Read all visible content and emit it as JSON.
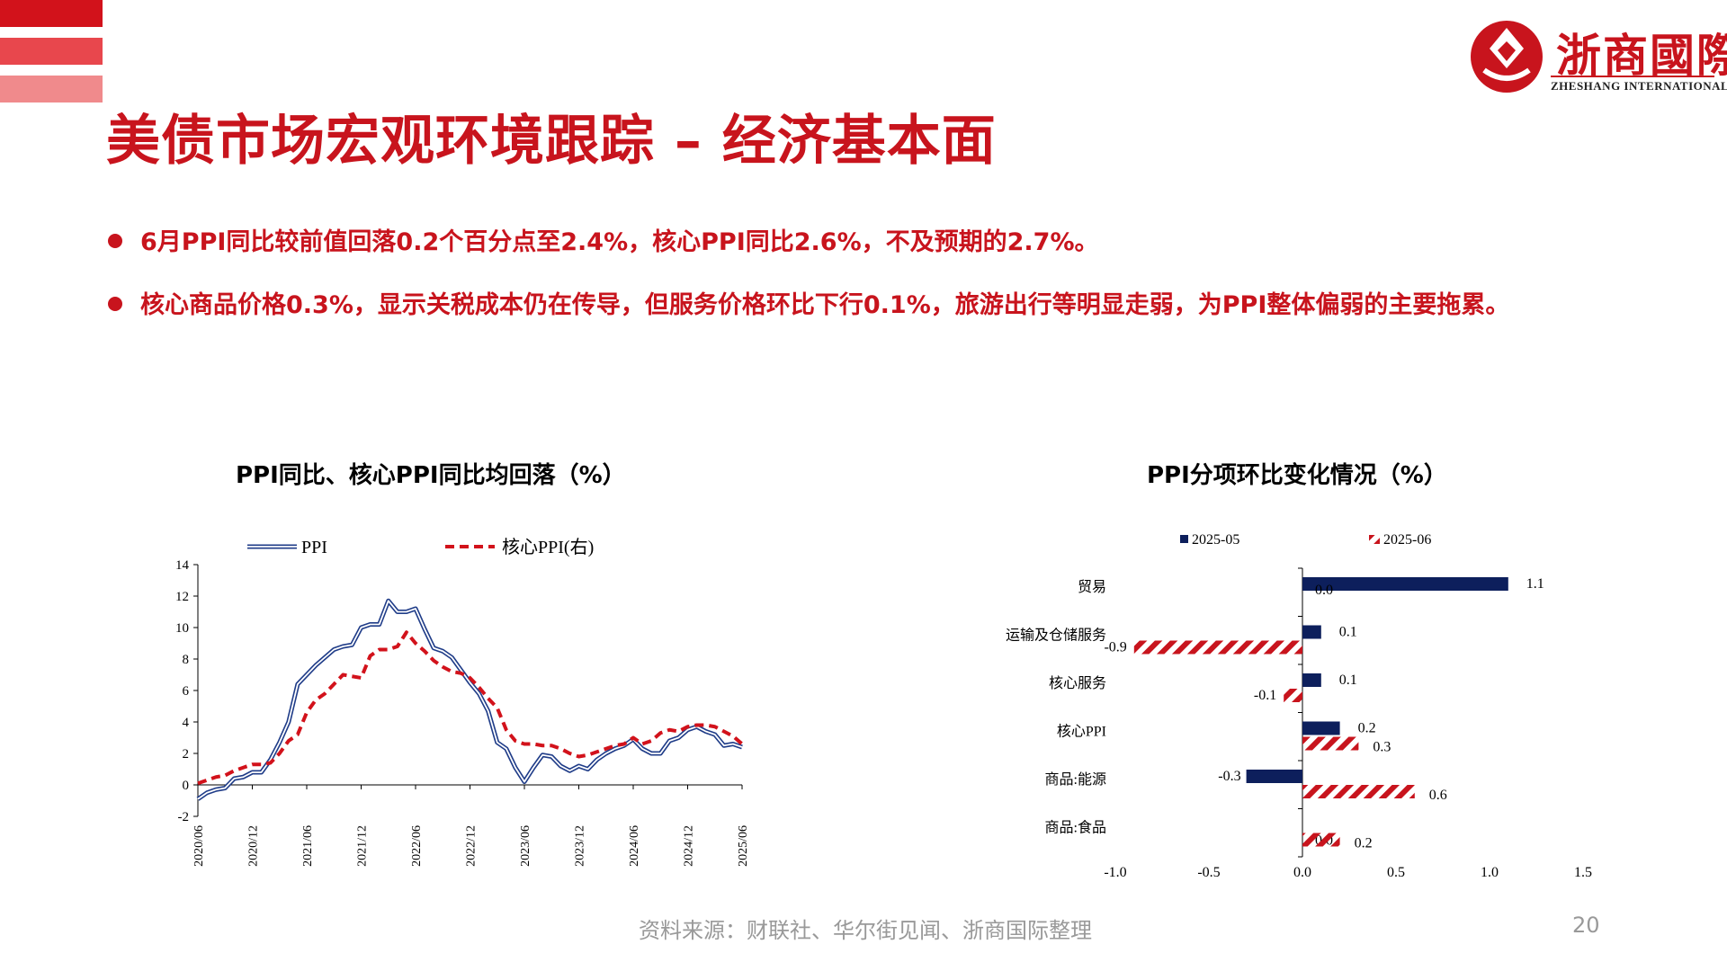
{
  "colors": {
    "brand_red": "#c8141d",
    "ppi_blue": "#1f3c88",
    "bar_navy": "#0d1f5c",
    "bar_red": "#c8141d"
  },
  "logo": {
    "icon": "zheshang-logo-icon",
    "name": "浙商國際",
    "sub": "ZHESHANG INTERNATIONAL"
  },
  "title": "美债市场宏观环境跟踪 – 经济基本面",
  "bullets": [
    "6月PPI同比较前值回落0.2个百分点至2.4%，核心PPI同比2.6%，不及预期的2.7%。",
    "核心商品价格0.3%，显示关税成本仍在传导，但服务价格环比下行0.1%，旅游出行等明显走弱，为PPI整体偏弱的主要拖累。"
  ],
  "footer": {
    "source": "资料来源：财联社、华尔街见闻、浙商国际整理",
    "page": "20"
  },
  "chart_data": [
    {
      "type": "line",
      "title": "PPI同比、核心PPI同比均回落（%）",
      "ylim": [
        -2,
        14
      ],
      "yticks": [
        "-2",
        "0",
        "2",
        "4",
        "6",
        "8",
        "10",
        "12",
        "14"
      ],
      "xticks": [
        "2020/06",
        "2020/12",
        "2021/06",
        "2021/12",
        "2022/06",
        "2022/12",
        "2023/06",
        "2023/12",
        "2024/06",
        "2024/12",
        "2025/06"
      ],
      "x": [
        "2020/06",
        "2020/07",
        "2020/08",
        "2020/09",
        "2020/10",
        "2020/11",
        "2020/12",
        "2021/01",
        "2021/02",
        "2021/03",
        "2021/04",
        "2021/05",
        "2021/06",
        "2021/07",
        "2021/08",
        "2021/09",
        "2021/10",
        "2021/11",
        "2021/12",
        "2022/01",
        "2022/02",
        "2022/03",
        "2022/04",
        "2022/05",
        "2022/06",
        "2022/07",
        "2022/08",
        "2022/09",
        "2022/10",
        "2022/11",
        "2022/12",
        "2023/01",
        "2023/02",
        "2023/03",
        "2023/04",
        "2023/05",
        "2023/06",
        "2023/07",
        "2023/08",
        "2023/09",
        "2023/10",
        "2023/11",
        "2023/12",
        "2024/01",
        "2024/02",
        "2024/03",
        "2024/04",
        "2024/05",
        "2024/06",
        "2024/07",
        "2024/08",
        "2024/09",
        "2024/10",
        "2024/11",
        "2024/12",
        "2025/01",
        "2025/02",
        "2025/03",
        "2025/04",
        "2025/05",
        "2025/06"
      ],
      "series": [
        {
          "name": "PPI",
          "values": [
            -0.9,
            -0.5,
            -0.3,
            -0.2,
            0.4,
            0.5,
            0.8,
            0.8,
            1.6,
            2.7,
            4.0,
            6.4,
            7.0,
            7.6,
            8.1,
            8.6,
            8.8,
            8.9,
            10.0,
            10.2,
            10.2,
            11.7,
            11.0,
            11.0,
            11.2,
            9.9,
            8.7,
            8.5,
            8.1,
            7.3,
            6.5,
            5.8,
            4.7,
            2.7,
            2.3,
            1.1,
            0.2,
            1.1,
            1.9,
            1.8,
            1.2,
            0.9,
            1.2,
            1.0,
            1.6,
            2.0,
            2.3,
            2.5,
            2.9,
            2.3,
            2.0,
            2.0,
            2.8,
            3.0,
            3.5,
            3.7,
            3.4,
            3.2,
            2.5,
            2.6,
            2.4
          ]
        },
        {
          "name": "核心PPI(右)",
          "values": [
            0.1,
            0.3,
            0.5,
            0.6,
            0.9,
            1.1,
            1.3,
            1.3,
            1.4,
            2.0,
            2.8,
            3.2,
            4.6,
            5.4,
            5.8,
            6.4,
            7.0,
            6.9,
            6.8,
            8.2,
            8.6,
            8.6,
            8.8,
            9.7,
            9.0,
            8.5,
            7.9,
            7.5,
            7.2,
            7.1,
            6.8,
            6.2,
            5.5,
            4.9,
            3.5,
            2.8,
            2.6,
            2.6,
            2.5,
            2.5,
            2.3,
            2.0,
            1.8,
            1.9,
            2.1,
            2.3,
            2.5,
            2.6,
            3.0,
            2.6,
            2.8,
            3.3,
            3.5,
            3.4,
            3.7,
            3.8,
            3.8,
            3.7,
            3.4,
            3.1,
            2.6
          ]
        }
      ]
    },
    {
      "type": "bar",
      "title": "PPI分项环比变化情况（%）",
      "categories": [
        "贸易",
        "运输及仓储服务",
        "核心服务",
        "核心PPI",
        "商品:能源",
        "商品:食品"
      ],
      "xlim": [
        -1.0,
        1.5
      ],
      "xticks": [
        "-1.0",
        "-0.5",
        "0.0",
        "0.5",
        "1.0",
        "1.5"
      ],
      "series": [
        {
          "name": "2025-05",
          "values": [
            1.1,
            0.1,
            0.1,
            0.2,
            -0.3,
            0.0
          ],
          "labels": [
            "1.1",
            "0.1",
            "0.1",
            "0.2",
            "-0.3",
            "0.0"
          ]
        },
        {
          "name": "2025-06",
          "values": [
            0.0,
            -0.9,
            -0.1,
            0.3,
            0.6,
            0.2
          ],
          "labels": [
            "0.0",
            "-0.9",
            "-0.1",
            "0.3",
            "0.6",
            "0.2"
          ]
        }
      ]
    }
  ]
}
